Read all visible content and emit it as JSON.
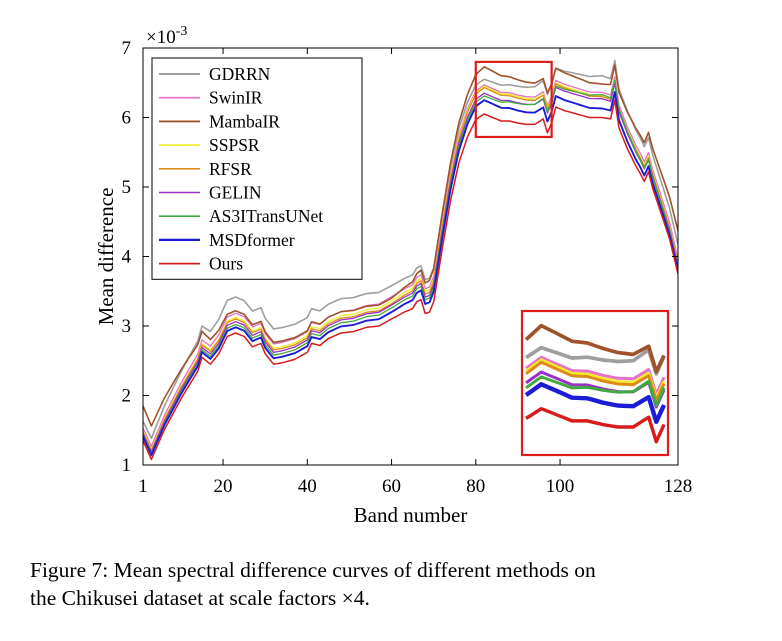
{
  "caption": {
    "line1": "Figure 7: Mean spectral difference curves of different methods on",
    "line2": "the Chikusei dataset at scale factors ×4."
  },
  "chart_data": {
    "type": "line",
    "xlabel": "Band number",
    "ylabel": "Mean difference",
    "y_scale_label": "×10",
    "y_scale_exponent": "-3",
    "xlim": [
      1,
      128
    ],
    "ylim": [
      1,
      7
    ],
    "xticks": [
      1,
      20,
      40,
      60,
      80,
      100,
      128
    ],
    "yticks": [
      1,
      2,
      3,
      4,
      5,
      6,
      7
    ],
    "legend_position": "top-left",
    "grid": false,
    "zoom_region": {
      "x": [
        80,
        98
      ],
      "y": [
        5.72,
        6.8
      ]
    },
    "zoom_inset_position": "bottom-right",
    "base_curve": [
      [
        1,
        1.35
      ],
      [
        3,
        1.08
      ],
      [
        6,
        1.5
      ],
      [
        10,
        1.95
      ],
      [
        14,
        2.35
      ],
      [
        15,
        2.55
      ],
      [
        17,
        2.45
      ],
      [
        19,
        2.6
      ],
      [
        21,
        2.85
      ],
      [
        23,
        2.9
      ],
      [
        25,
        2.85
      ],
      [
        27,
        2.7
      ],
      [
        29,
        2.75
      ],
      [
        30,
        2.6
      ],
      [
        32,
        2.45
      ],
      [
        34,
        2.47
      ],
      [
        37,
        2.52
      ],
      [
        40,
        2.62
      ],
      [
        41,
        2.75
      ],
      [
        43,
        2.72
      ],
      [
        45,
        2.82
      ],
      [
        48,
        2.9
      ],
      [
        51,
        2.92
      ],
      [
        54,
        2.98
      ],
      [
        57,
        3.0
      ],
      [
        60,
        3.1
      ],
      [
        63,
        3.2
      ],
      [
        65,
        3.25
      ],
      [
        66,
        3.35
      ],
      [
        67,
        3.38
      ],
      [
        68,
        3.18
      ],
      [
        69,
        3.2
      ],
      [
        70,
        3.35
      ],
      [
        72,
        4.1
      ],
      [
        74,
        4.8
      ],
      [
        76,
        5.35
      ],
      [
        78,
        5.72
      ],
      [
        80,
        5.97
      ],
      [
        82,
        6.05
      ],
      [
        84,
        6.0
      ],
      [
        86,
        5.95
      ],
      [
        88,
        5.95
      ],
      [
        90,
        5.92
      ],
      [
        92,
        5.9
      ],
      [
        94,
        5.9
      ],
      [
        96,
        5.98
      ],
      [
        97,
        5.78
      ],
      [
        98,
        5.92
      ],
      [
        99,
        6.15
      ],
      [
        101,
        6.1
      ],
      [
        104,
        6.05
      ],
      [
        107,
        6.0
      ],
      [
        110,
        6.0
      ],
      [
        112,
        5.98
      ],
      [
        113,
        6.25
      ],
      [
        114,
        5.85
      ],
      [
        116,
        5.55
      ],
      [
        118,
        5.3
      ],
      [
        119,
        5.2
      ],
      [
        120,
        5.08
      ],
      [
        121,
        5.22
      ],
      [
        122,
        4.98
      ],
      [
        124,
        4.62
      ],
      [
        126,
        4.25
      ],
      [
        128,
        3.75
      ]
    ],
    "series": [
      {
        "name": "GDRRN",
        "color": "#9e9e9e",
        "offset": [
          0.28,
          0.52,
          0.48,
          0.5,
          0.6,
          0.42
        ],
        "width": 1.6
      },
      {
        "name": "SwinIR",
        "color": "#e66fc8",
        "offset": [
          0.18,
          0.28,
          0.32,
          0.42,
          0.36,
          0.22
        ],
        "width": 1.3
      },
      {
        "name": "MambaIR",
        "color": "#a0522d",
        "offset": [
          0.5,
          0.32,
          0.3,
          0.68,
          0.48,
          0.62
        ],
        "width": 1.6
      },
      {
        "name": "SSPSR",
        "color": "#f2ee2e",
        "offset": [
          0.14,
          0.22,
          0.26,
          0.4,
          0.32,
          0.16
        ],
        "width": 1.3
      },
      {
        "name": "RFSR",
        "color": "#dd8a1a",
        "offset": [
          0.12,
          0.2,
          0.22,
          0.38,
          0.3,
          0.14
        ],
        "width": 1.3
      },
      {
        "name": "GELIN",
        "color": "#9b30c8",
        "offset": [
          0.1,
          0.16,
          0.2,
          0.3,
          0.27,
          0.11
        ],
        "width": 1.3
      },
      {
        "name": "AS3ITransUNet",
        "color": "#3fab3f",
        "offset": [
          0.08,
          0.12,
          0.16,
          0.26,
          0.33,
          0.08
        ],
        "width": 1.3
      },
      {
        "name": "MSDformer",
        "color": "#1c1cd8",
        "offset": [
          0.06,
          0.08,
          0.1,
          0.2,
          0.13,
          0.05
        ],
        "width": 1.9
      },
      {
        "name": "Ours",
        "color": "#d81c1c",
        "offset": [
          0.0,
          0.0,
          0.0,
          0.0,
          0.0,
          0.0
        ],
        "width": 1.5
      }
    ],
    "offset_anchors_x": [
      1,
      21,
      60,
      82,
      110,
      128
    ]
  }
}
